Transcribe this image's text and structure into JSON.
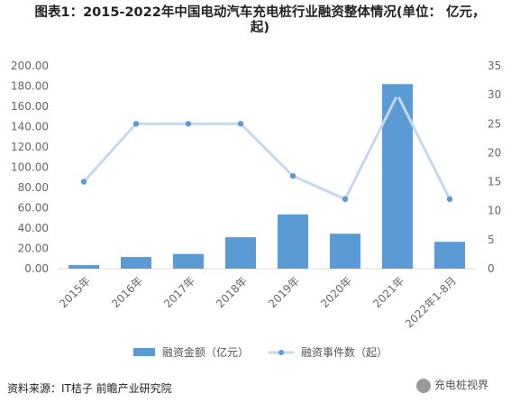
{
  "title": "图表1：2015-2022年中国电动汽车充电桩行业融资整体情况(单位：亿元，起)",
  "title_lines": [
    "图表1：2015-2022年中国电动汽车充电桩行业融资整体情况(单位： 亿元，",
    "起)"
  ],
  "source": "资料来源：IT桔子 前瞻产业研究院",
  "wechat_label": "充电桩视界",
  "colors": {
    "bar": "#5b9bd5",
    "line": "#c5d8eb",
    "marker_fill": "#ffffff",
    "marker_stroke": "#5b9bd5"
  },
  "chart_data": {
    "type": "bar",
    "categories": [
      "2015年",
      "2016年",
      "2017年",
      "2018年",
      "2019年",
      "2020年",
      "2021年",
      "2022年1-8月"
    ],
    "series": [
      {
        "name": "融资金额（亿元）",
        "type": "bar",
        "axis": "left",
        "values": [
          3.5,
          11.5,
          14.5,
          31,
          53.5,
          34.5,
          182,
          26.5
        ]
      },
      {
        "name": "融资事件数（起）",
        "type": "line",
        "axis": "right",
        "values": [
          15,
          25,
          25,
          25,
          16,
          12,
          30,
          12
        ]
      }
    ],
    "y_left": {
      "min": 0,
      "max": 200,
      "step": 20,
      "tick_labels": [
        "0.00",
        "20.00",
        "40.00",
        "60.00",
        "80.00",
        "100.00",
        "120.00",
        "140.00",
        "160.00",
        "180.00",
        "200.00"
      ]
    },
    "y_right": {
      "min": 0,
      "max": 35,
      "step": 5,
      "tick_labels": [
        "0",
        "5",
        "10",
        "15",
        "20",
        "25",
        "30",
        "35"
      ]
    },
    "grid": false,
    "legend_position": "bottom"
  }
}
